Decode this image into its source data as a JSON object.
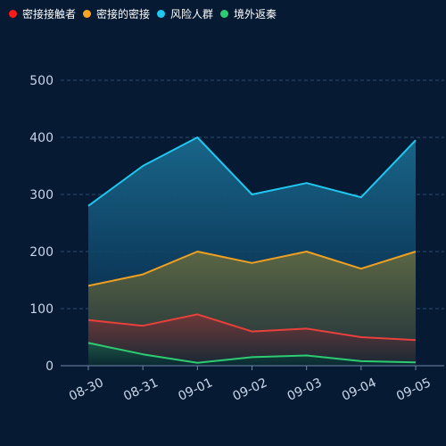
{
  "legend": {
    "items": [
      {
        "label": "密接接触者",
        "color": "#ff1a1a"
      },
      {
        "label": "密接的密接",
        "color": "#f5a623"
      },
      {
        "label": "风险人群",
        "color": "#1ec8f0"
      },
      {
        "label": "境外返秦",
        "color": "#2ecc71"
      }
    ]
  },
  "chart_data": {
    "type": "area",
    "title": "",
    "xlabel": "",
    "ylabel": "",
    "categories": [
      "08-30",
      "08-31",
      "09-01",
      "09-02",
      "09-03",
      "09-04",
      "09-05"
    ],
    "ylim": [
      0,
      500
    ],
    "yticks": [
      0,
      100,
      200,
      300,
      400,
      500
    ],
    "grid": true,
    "legend_position": "top-left",
    "series": [
      {
        "name": "密接接触者",
        "color": "#e8403a",
        "values": [
          80,
          70,
          90,
          60,
          65,
          50,
          45
        ]
      },
      {
        "name": "密接的密接",
        "color": "#f0a020",
        "values": [
          140,
          160,
          200,
          180,
          200,
          170,
          200
        ]
      },
      {
        "name": "风险人群",
        "color": "#20c8f0",
        "values": [
          280,
          350,
          400,
          300,
          320,
          295,
          395
        ]
      },
      {
        "name": "境外返秦",
        "color": "#2ecc71",
        "values": [
          40,
          20,
          5,
          15,
          18,
          8,
          6
        ]
      }
    ]
  }
}
